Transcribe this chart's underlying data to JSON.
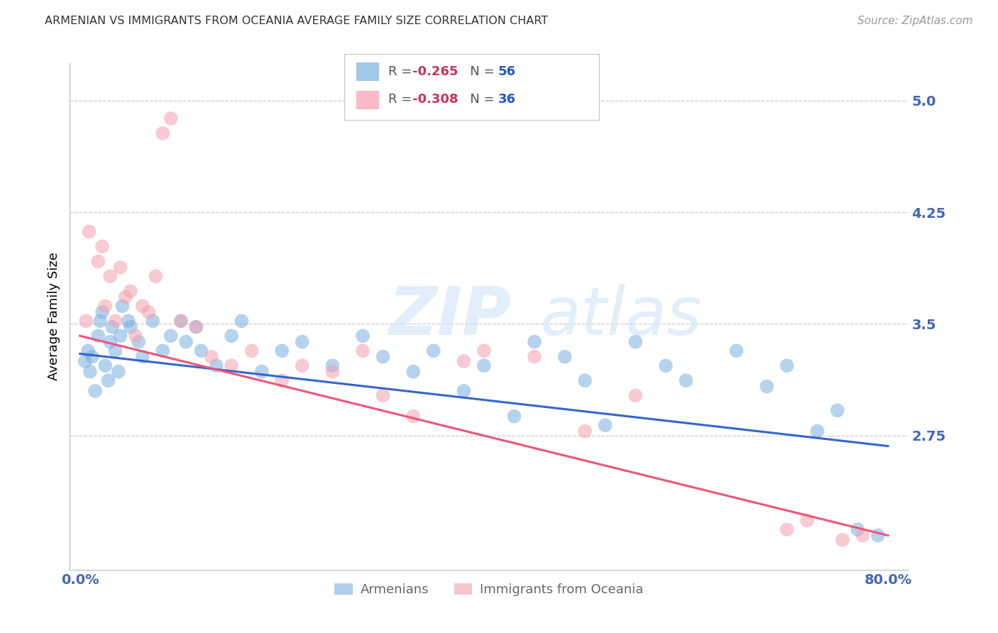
{
  "title": "ARMENIAN VS IMMIGRANTS FROM OCEANIA AVERAGE FAMILY SIZE CORRELATION CHART",
  "source": "Source: ZipAtlas.com",
  "ylabel": "Average Family Size",
  "xlabel_ticks": [
    "0.0%",
    "80.0%"
  ],
  "yticks": [
    2.75,
    3.5,
    4.25,
    5.0
  ],
  "xlim": [
    -0.01,
    0.82
  ],
  "ylim": [
    1.85,
    5.25
  ],
  "watermark_line1": "ZIP",
  "watermark_line2": "atlas",
  "legend_title_armenians": "Armenians",
  "legend_title_oceania": "Immigrants from Oceania",
  "armenians_color": "#7ab0e0",
  "oceania_color": "#f4a0b0",
  "armenians_line_color": "#3366cc",
  "oceania_line_color": "#ee5577",
  "title_color": "#333333",
  "axis_color": "#4466bb",
  "grid_color": "#cccccc",
  "r_color": "#cc3355",
  "n_color": "#2255cc",
  "armenians_x": [
    0.005,
    0.008,
    0.01,
    0.012,
    0.015,
    0.018,
    0.02,
    0.022,
    0.025,
    0.028,
    0.03,
    0.032,
    0.035,
    0.038,
    0.04,
    0.042,
    0.048,
    0.05,
    0.058,
    0.062,
    0.072,
    0.082,
    0.09,
    0.1,
    0.105,
    0.115,
    0.12,
    0.135,
    0.15,
    0.16,
    0.18,
    0.2,
    0.22,
    0.25,
    0.28,
    0.3,
    0.33,
    0.35,
    0.38,
    0.4,
    0.43,
    0.45,
    0.48,
    0.5,
    0.52,
    0.55,
    0.58,
    0.6,
    0.65,
    0.68,
    0.7,
    0.73,
    0.75,
    0.77,
    0.79
  ],
  "armenians_y": [
    3.25,
    3.32,
    3.18,
    3.28,
    3.05,
    3.42,
    3.52,
    3.58,
    3.22,
    3.12,
    3.38,
    3.48,
    3.32,
    3.18,
    3.42,
    3.62,
    3.52,
    3.48,
    3.38,
    3.28,
    3.52,
    3.32,
    3.42,
    3.52,
    3.38,
    3.48,
    3.32,
    3.22,
    3.42,
    3.52,
    3.18,
    3.32,
    3.38,
    3.22,
    3.42,
    3.28,
    3.18,
    3.32,
    3.05,
    3.22,
    2.88,
    3.38,
    3.28,
    3.12,
    2.82,
    3.38,
    3.22,
    3.12,
    3.32,
    3.08,
    3.22,
    2.78,
    2.92,
    2.12,
    2.08
  ],
  "oceania_x": [
    0.006,
    0.009,
    0.018,
    0.022,
    0.025,
    0.03,
    0.035,
    0.04,
    0.045,
    0.05,
    0.055,
    0.062,
    0.068,
    0.075,
    0.082,
    0.09,
    0.1,
    0.115,
    0.13,
    0.15,
    0.17,
    0.2,
    0.22,
    0.25,
    0.28,
    0.3,
    0.33,
    0.38,
    0.4,
    0.45,
    0.5,
    0.55,
    0.7,
    0.72,
    0.755,
    0.775
  ],
  "oceania_y": [
    3.52,
    4.12,
    3.92,
    4.02,
    3.62,
    3.82,
    3.52,
    3.88,
    3.68,
    3.72,
    3.42,
    3.62,
    3.58,
    3.82,
    4.78,
    4.88,
    3.52,
    3.48,
    3.28,
    3.22,
    3.32,
    3.12,
    3.22,
    3.18,
    3.32,
    3.02,
    2.88,
    3.25,
    3.32,
    3.28,
    2.78,
    3.02,
    2.12,
    2.18,
    2.05,
    2.08
  ],
  "armenians_trend_x": [
    0.0,
    0.8
  ],
  "armenians_trend_y": [
    3.3,
    2.68
  ],
  "oceania_trend_x": [
    0.0,
    0.8
  ],
  "oceania_trend_y": [
    3.42,
    2.08
  ]
}
